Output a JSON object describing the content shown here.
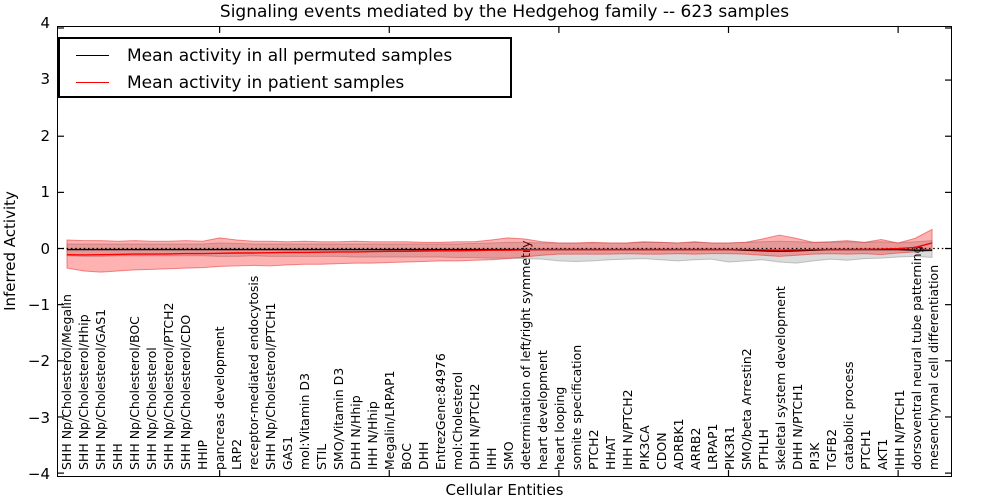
{
  "title": "Signaling events mediated by the Hedgehog family -- 623 samples",
  "axes": {
    "x_label": "Cellular Entities",
    "y_label": "Inferred Activity",
    "y_tick_labels": [
      "4",
      "3",
      "2",
      "1",
      "0",
      "−1",
      "−2",
      "−3",
      "−4"
    ]
  },
  "legend": {
    "items": [
      {
        "label": "Mean activity in all permuted samples",
        "color": "#000000"
      },
      {
        "label": "Mean activity in patient samples",
        "color": "#ff0000"
      }
    ]
  },
  "chart_data": {
    "type": "line",
    "title": "Signaling events mediated by the Hedgehog family -- 623 samples",
    "xlabel": "Cellular Entities",
    "ylabel": "Inferred Activity",
    "ylim": [
      -4,
      4
    ],
    "y_tick_values": [
      4,
      3,
      2,
      1,
      0,
      -1,
      -2,
      -3,
      -4
    ],
    "x_major_tick_indices": [
      9,
      19,
      29,
      39,
      49
    ],
    "grid": false,
    "legend_position": "upper left",
    "categories": [
      "SHH Np/Cholesterol/Megalin",
      "SHH Np/Cholesterol/Hhip",
      "SHH Np/Cholesterol/GAS1",
      "SHH",
      "SHH Np/Cholesterol/BOC",
      "SHH Np/Cholesterol",
      "SHH Np/Cholesterol/PTCH2",
      "SHH Np/Cholesterol/CDO",
      "HHIP",
      "pancreas development",
      "LRP2",
      "receptor-mediated endocytosis",
      "SHH Np/Cholesterol/PTCH1",
      "GAS1",
      "mol:Vitamin D3",
      "STIL",
      "SMO/Vitamin D3",
      "DHH N/Hhip",
      "IHH N/Hhip",
      "Megalin/LRPAP1",
      "BOC",
      "DHH",
      "EntrezGene:84976",
      "mol:Cholesterol",
      "DHH N/PTCH2",
      "IHH",
      "SMO",
      "determination of left/right symmetry",
      "heart development",
      "heart looping",
      "somite specification",
      "PTCH2",
      "HHAT",
      "IHH N/PTCH2",
      "PIK3CA",
      "CDON",
      "ADRBK1",
      "ARRB2",
      "LRPAP1",
      "PIK3R1",
      "SMO/beta Arrestin2",
      "PTHLH",
      "skeletal system development",
      "DHH N/PTCH1",
      "PI3K",
      "TGFB2",
      "catabolic process",
      "PTCH1",
      "AKT1",
      "IHH N/PTCH1",
      "dorsoventral neural tube patterning",
      "mesenchymal cell differentiation"
    ],
    "reference_line": {
      "y": 0,
      "style": "dotted",
      "color": "#000000"
    },
    "series": [
      {
        "name": "Mean activity in all permuted samples",
        "color": "#000000",
        "style": "solid",
        "values": [
          -0.02,
          -0.02,
          -0.02,
          -0.02,
          -0.02,
          -0.02,
          -0.02,
          -0.02,
          -0.02,
          -0.02,
          -0.02,
          -0.02,
          -0.02,
          -0.02,
          -0.02,
          -0.02,
          -0.02,
          -0.02,
          -0.02,
          -0.02,
          -0.02,
          -0.02,
          -0.02,
          -0.02,
          -0.02,
          -0.02,
          -0.02,
          -0.02,
          -0.02,
          -0.02,
          -0.02,
          -0.02,
          -0.02,
          -0.02,
          -0.02,
          -0.02,
          -0.02,
          -0.02,
          -0.02,
          -0.02,
          -0.03,
          -0.04,
          -0.05,
          -0.04,
          -0.03,
          -0.02,
          -0.02,
          -0.02,
          -0.02,
          -0.02,
          -0.03,
          -0.03
        ]
      },
      {
        "name": "Mean activity in patient samples",
        "color": "#ff0000",
        "style": "solid",
        "values": [
          -0.11,
          -0.115,
          -0.11,
          -0.105,
          -0.1,
          -0.1,
          -0.095,
          -0.09,
          -0.09,
          -0.085,
          -0.08,
          -0.08,
          -0.075,
          -0.07,
          -0.07,
          -0.065,
          -0.06,
          -0.06,
          -0.055,
          -0.05,
          -0.05,
          -0.045,
          -0.04,
          -0.04,
          -0.035,
          -0.03,
          -0.03,
          -0.025,
          -0.02,
          -0.02,
          -0.02,
          -0.02,
          -0.02,
          -0.02,
          -0.02,
          -0.02,
          -0.02,
          -0.02,
          -0.02,
          -0.02,
          -0.02,
          -0.025,
          -0.03,
          -0.025,
          -0.02,
          -0.02,
          -0.02,
          -0.015,
          -0.01,
          0.0,
          0.02,
          0.1
        ]
      }
    ],
    "bands": [
      {
        "name": "permuted samples spread",
        "fill": "rgba(0,0,0,0.14)",
        "edge": "rgba(120,120,120,0.4)",
        "upper": [
          0.08,
          0.08,
          0.08,
          0.08,
          0.08,
          0.08,
          0.08,
          0.08,
          0.08,
          0.1,
          0.09,
          0.08,
          0.08,
          0.08,
          0.08,
          0.08,
          0.08,
          0.08,
          0.08,
          0.08,
          0.08,
          0.08,
          0.08,
          0.08,
          0.09,
          0.1,
          0.11,
          0.11,
          0.1,
          0.1,
          0.1,
          0.1,
          0.1,
          0.1,
          0.11,
          0.11,
          0.1,
          0.11,
          0.1,
          0.1,
          0.11,
          0.12,
          0.13,
          0.12,
          0.11,
          0.11,
          0.12,
          0.11,
          0.12,
          0.1,
          0.12,
          0.14
        ],
        "lower": [
          -0.13,
          -0.14,
          -0.14,
          -0.13,
          -0.13,
          -0.13,
          -0.13,
          -0.13,
          -0.13,
          -0.14,
          -0.14,
          -0.13,
          -0.14,
          -0.14,
          -0.14,
          -0.14,
          -0.14,
          -0.15,
          -0.15,
          -0.15,
          -0.15,
          -0.15,
          -0.15,
          -0.16,
          -0.16,
          -0.17,
          -0.17,
          -0.18,
          -0.19,
          -0.22,
          -0.23,
          -0.22,
          -0.2,
          -0.19,
          -0.18,
          -0.2,
          -0.22,
          -0.2,
          -0.19,
          -0.24,
          -0.22,
          -0.2,
          -0.24,
          -0.26,
          -0.22,
          -0.19,
          -0.21,
          -0.18,
          -0.17,
          -0.15,
          -0.14,
          -0.16
        ]
      },
      {
        "name": "patient samples spread",
        "fill": "rgba(255,0,0,0.30)",
        "edge": "rgba(230,50,50,0.55)",
        "upper": [
          0.15,
          0.14,
          0.14,
          0.13,
          0.14,
          0.13,
          0.13,
          0.14,
          0.13,
          0.19,
          0.15,
          0.13,
          0.13,
          0.12,
          0.13,
          0.12,
          0.12,
          0.13,
          0.12,
          0.12,
          0.12,
          0.11,
          0.11,
          0.12,
          0.12,
          0.15,
          0.19,
          0.17,
          0.12,
          0.1,
          0.1,
          0.11,
          0.1,
          0.1,
          0.12,
          0.11,
          0.1,
          0.12,
          0.1,
          0.1,
          0.11,
          0.17,
          0.24,
          0.18,
          0.11,
          0.12,
          0.14,
          0.11,
          0.16,
          0.1,
          0.18,
          0.34
        ],
        "lower": [
          -0.35,
          -0.4,
          -0.42,
          -0.4,
          -0.38,
          -0.37,
          -0.36,
          -0.35,
          -0.34,
          -0.32,
          -0.31,
          -0.3,
          -0.31,
          -0.29,
          -0.28,
          -0.28,
          -0.27,
          -0.26,
          -0.26,
          -0.25,
          -0.24,
          -0.23,
          -0.22,
          -0.22,
          -0.21,
          -0.2,
          -0.18,
          -0.15,
          -0.12,
          -0.1,
          -0.1,
          -0.1,
          -0.1,
          -0.09,
          -0.1,
          -0.1,
          -0.09,
          -0.1,
          -0.09,
          -0.09,
          -0.1,
          -0.12,
          -0.14,
          -0.12,
          -0.1,
          -0.09,
          -0.1,
          -0.09,
          -0.11,
          -0.08,
          -0.06,
          -0.04
        ]
      }
    ]
  }
}
